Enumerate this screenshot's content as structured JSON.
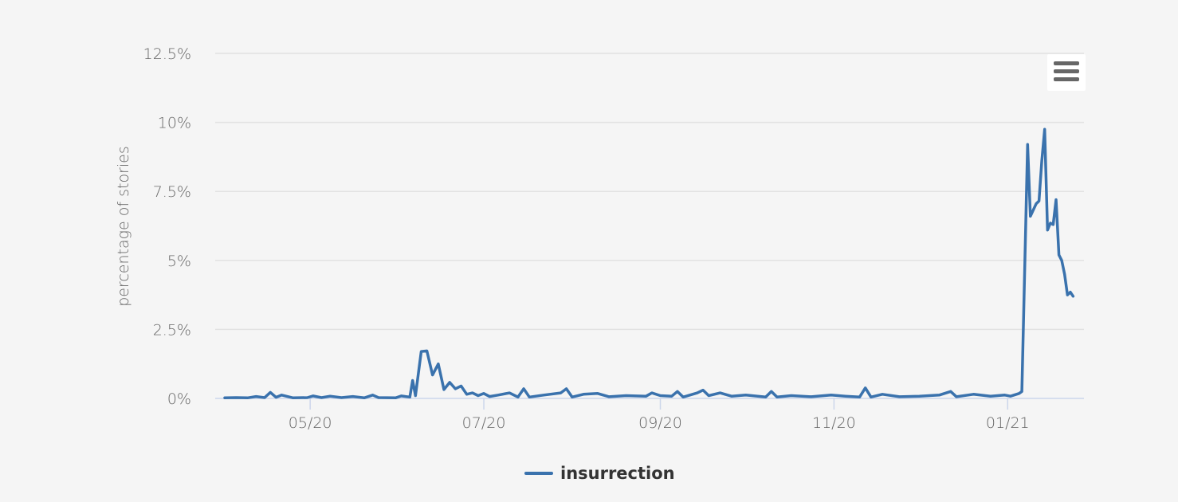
{
  "chart_data": {
    "type": "line",
    "title": "",
    "xlabel": "",
    "ylabel": "percentage of stories",
    "y_ticks": [
      "0%",
      "2.5%",
      "5%",
      "7.5%",
      "10%",
      "12.5%"
    ],
    "y_tick_values": [
      0,
      2.5,
      5,
      7.5,
      10,
      12.5
    ],
    "ylim": [
      0,
      12.5
    ],
    "x_ticks": [
      "05/20",
      "07/20",
      "09/20",
      "11/20",
      "01/21"
    ],
    "x_tick_dates": [
      "2020-05-01",
      "2020-07-01",
      "2020-09-01",
      "2020-11-01",
      "2021-01-01"
    ],
    "xlim": [
      "2020-04-01",
      "2021-01-25"
    ],
    "grid": true,
    "legend_position": "bottom-center",
    "series": [
      {
        "name": "insurrection",
        "color": "#3a72ad",
        "points": [
          [
            "2020-04-01",
            0.02
          ],
          [
            "2020-04-05",
            0.03
          ],
          [
            "2020-04-09",
            0.02
          ],
          [
            "2020-04-12",
            0.07
          ],
          [
            "2020-04-15",
            0.03
          ],
          [
            "2020-04-17",
            0.22
          ],
          [
            "2020-04-19",
            0.04
          ],
          [
            "2020-04-21",
            0.12
          ],
          [
            "2020-04-25",
            0.02
          ],
          [
            "2020-04-30",
            0.03
          ],
          [
            "2020-05-02",
            0.09
          ],
          [
            "2020-05-05",
            0.03
          ],
          [
            "2020-05-08",
            0.08
          ],
          [
            "2020-05-12",
            0.03
          ],
          [
            "2020-05-16",
            0.07
          ],
          [
            "2020-05-20",
            0.02
          ],
          [
            "2020-05-23",
            0.12
          ],
          [
            "2020-05-25",
            0.03
          ],
          [
            "2020-05-31",
            0.02
          ],
          [
            "2020-06-02",
            0.09
          ],
          [
            "2020-06-05",
            0.05
          ],
          [
            "2020-06-06",
            0.65
          ],
          [
            "2020-06-07",
            0.1
          ],
          [
            "2020-06-09",
            1.7
          ],
          [
            "2020-06-11",
            1.72
          ],
          [
            "2020-06-13",
            0.85
          ],
          [
            "2020-06-15",
            1.25
          ],
          [
            "2020-06-17",
            0.32
          ],
          [
            "2020-06-19",
            0.58
          ],
          [
            "2020-06-21",
            0.35
          ],
          [
            "2020-06-23",
            0.45
          ],
          [
            "2020-06-25",
            0.15
          ],
          [
            "2020-06-27",
            0.2
          ],
          [
            "2020-06-29",
            0.1
          ],
          [
            "2020-07-01",
            0.18
          ],
          [
            "2020-07-03",
            0.07
          ],
          [
            "2020-07-06",
            0.12
          ],
          [
            "2020-07-10",
            0.2
          ],
          [
            "2020-07-13",
            0.05
          ],
          [
            "2020-07-15",
            0.35
          ],
          [
            "2020-07-17",
            0.05
          ],
          [
            "2020-07-22",
            0.12
          ],
          [
            "2020-07-28",
            0.2
          ],
          [
            "2020-07-30",
            0.35
          ],
          [
            "2020-08-01",
            0.05
          ],
          [
            "2020-08-05",
            0.15
          ],
          [
            "2020-08-10",
            0.18
          ],
          [
            "2020-08-14",
            0.06
          ],
          [
            "2020-08-20",
            0.1
          ],
          [
            "2020-08-27",
            0.08
          ],
          [
            "2020-08-29",
            0.2
          ],
          [
            "2020-09-01",
            0.1
          ],
          [
            "2020-09-05",
            0.08
          ],
          [
            "2020-09-07",
            0.25
          ],
          [
            "2020-09-09",
            0.05
          ],
          [
            "2020-09-14",
            0.2
          ],
          [
            "2020-09-16",
            0.3
          ],
          [
            "2020-09-18",
            0.1
          ],
          [
            "2020-09-22",
            0.2
          ],
          [
            "2020-09-26",
            0.08
          ],
          [
            "2020-10-01",
            0.12
          ],
          [
            "2020-10-08",
            0.05
          ],
          [
            "2020-10-10",
            0.25
          ],
          [
            "2020-10-12",
            0.05
          ],
          [
            "2020-10-17",
            0.1
          ],
          [
            "2020-10-24",
            0.06
          ],
          [
            "2020-10-31",
            0.12
          ],
          [
            "2020-11-05",
            0.08
          ],
          [
            "2020-11-10",
            0.05
          ],
          [
            "2020-11-12",
            0.38
          ],
          [
            "2020-11-14",
            0.05
          ],
          [
            "2020-11-18",
            0.15
          ],
          [
            "2020-11-24",
            0.06
          ],
          [
            "2020-12-01",
            0.08
          ],
          [
            "2020-12-08",
            0.12
          ],
          [
            "2020-12-12",
            0.25
          ],
          [
            "2020-12-14",
            0.06
          ],
          [
            "2020-12-20",
            0.15
          ],
          [
            "2020-12-26",
            0.08
          ],
          [
            "2020-12-31",
            0.12
          ],
          [
            "2021-01-02",
            0.08
          ],
          [
            "2021-01-05",
            0.18
          ],
          [
            "2021-01-06",
            0.25
          ],
          [
            "2021-01-08",
            9.2
          ],
          [
            "2021-01-09",
            6.6
          ],
          [
            "2021-01-11",
            7.05
          ],
          [
            "2021-01-12",
            7.15
          ],
          [
            "2021-01-13",
            8.6
          ],
          [
            "2021-01-14",
            9.75
          ],
          [
            "2021-01-15",
            6.1
          ],
          [
            "2021-01-16",
            6.35
          ],
          [
            "2021-01-17",
            6.3
          ],
          [
            "2021-01-18",
            7.2
          ],
          [
            "2021-01-19",
            5.2
          ],
          [
            "2021-01-20",
            5.0
          ],
          [
            "2021-01-21",
            4.5
          ],
          [
            "2021-01-22",
            3.75
          ],
          [
            "2021-01-23",
            3.85
          ],
          [
            "2021-01-24",
            3.7
          ]
        ]
      }
    ]
  }
}
